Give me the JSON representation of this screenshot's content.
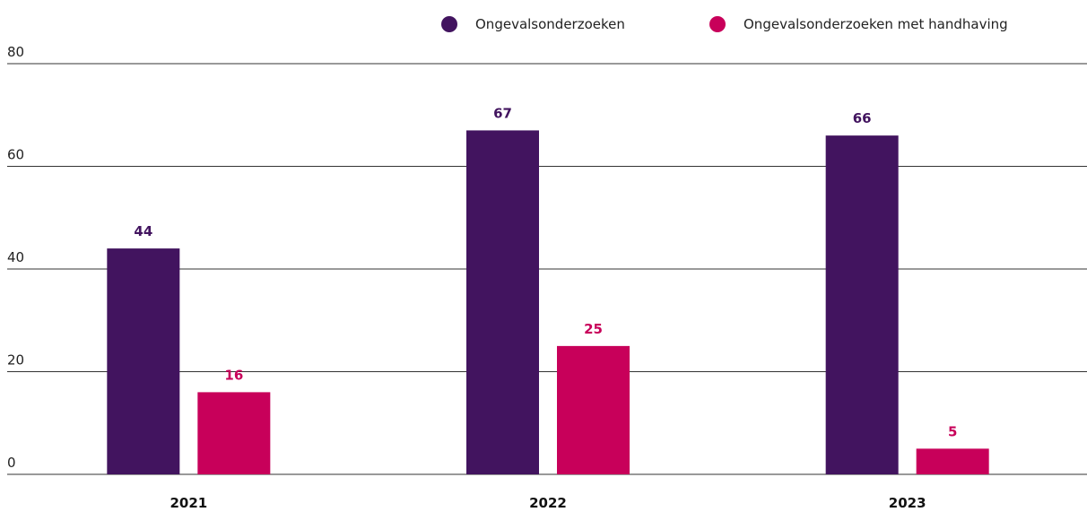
{
  "chart_data": {
    "type": "bar",
    "categories": [
      "2021",
      "2022",
      "2023"
    ],
    "series": [
      {
        "name": "Ongevalsonderzoeken",
        "color": "#42145f",
        "values": [
          44,
          67,
          66
        ]
      },
      {
        "name": "Ongevalsonderzoeken met handhaving",
        "color": "#c8005a",
        "values": [
          16,
          25,
          5
        ]
      }
    ],
    "ylim": [
      0,
      80
    ],
    "yticks": [
      0,
      20,
      40,
      60,
      80
    ],
    "grid": true,
    "legend": "top-right"
  }
}
